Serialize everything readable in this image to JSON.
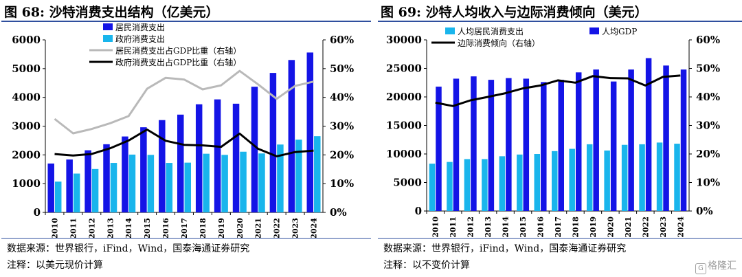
{
  "colors": {
    "bar_primary": "#1414e6",
    "bar_secondary": "#19b5ec",
    "line_light": "#b9b9b9",
    "line_dark": "#000000",
    "rule": "#2f4f9e"
  },
  "panels": [
    {
      "title": "图 68:  沙特消费支出结构（亿美元）",
      "note_source": "数据来源：世界银行，iFind，Wind，国泰海通证券研究",
      "note_comment": "注释：以美元现价计算"
    },
    {
      "title": "图 69:  沙特人均收入与边际消费倾向（美元）",
      "note_source": "数据来源：世界银行，iFind，Wind，国泰海通证券研究",
      "note_comment": "注释：以不变价计算"
    }
  ],
  "watermark": {
    "icon": "gelonghui-logo-icon",
    "text": "格隆汇"
  },
  "chart_data": [
    {
      "type": "bar",
      "title": "沙特消费支出结构（亿美元）",
      "categories": [
        "2010",
        "2011",
        "2012",
        "2013",
        "2014",
        "2015",
        "2016",
        "2017",
        "2018",
        "2019",
        "2020",
        "2021",
        "2022",
        "2023",
        "2024"
      ],
      "ylim": [
        0,
        6000
      ],
      "yticks": [
        0,
        1000,
        2000,
        3000,
        4000,
        5000,
        6000
      ],
      "y2lim": [
        0,
        60
      ],
      "y2ticks": [
        "0%",
        "10%",
        "20%",
        "30%",
        "40%",
        "50%",
        "60%"
      ],
      "legend_position": "top-left",
      "grid": false,
      "series": [
        {
          "name": "居民消费支出",
          "kind": "bar",
          "axis": "left",
          "color": "#1414e6",
          "values": [
            1700,
            1840,
            2160,
            2370,
            2640,
            2960,
            3210,
            3400,
            3760,
            3930,
            3780,
            4370,
            4850,
            5300,
            5560
          ]
        },
        {
          "name": "政府消费支出",
          "kind": "bar",
          "axis": "left",
          "color": "#19b5ec",
          "values": [
            1070,
            1350,
            1510,
            1720,
            2010,
            2000,
            1720,
            1730,
            2040,
            2000,
            2110,
            2050,
            2360,
            2530,
            2650
          ]
        },
        {
          "name": "居民消费支出占GDP比重（右轴）",
          "kind": "line",
          "axis": "right",
          "color": "#b9b9b9",
          "values": [
            32.5,
            27.5,
            29.0,
            31.0,
            33.5,
            43.0,
            46.8,
            46.2,
            42.8,
            44.2,
            49.2,
            44.5,
            39.5,
            44.0,
            45.5
          ]
        },
        {
          "name": "政府消费支出占GDP比重（右轴）",
          "kind": "line",
          "axis": "right",
          "color": "#000000",
          "values": [
            20.3,
            19.8,
            20.3,
            22.3,
            25.0,
            28.8,
            24.9,
            23.5,
            23.3,
            22.8,
            27.4,
            22.1,
            19.5,
            21.0,
            21.5
          ]
        }
      ]
    },
    {
      "type": "bar",
      "title": "沙特人均收入与边际消费倾向（美元）",
      "categories": [
        "2010",
        "2011",
        "2012",
        "2013",
        "2014",
        "2015",
        "2016",
        "2017",
        "2018",
        "2019",
        "2020",
        "2021",
        "2022",
        "2023",
        "2024"
      ],
      "ylim": [
        0,
        30000
      ],
      "yticks": [
        0,
        5000,
        10000,
        15000,
        20000,
        25000,
        30000
      ],
      "y2lim": [
        0,
        60
      ],
      "y2ticks": [
        "0%",
        "10%",
        "20%",
        "30%",
        "40%",
        "50%",
        "60%"
      ],
      "legend_position": "top-left",
      "grid": false,
      "series": [
        {
          "name": "人均居民消费支出",
          "kind": "bar",
          "axis": "left",
          "color": "#19b5ec",
          "values": [
            8300,
            8600,
            9100,
            9100,
            9600,
            9900,
            10000,
            10500,
            10900,
            11700,
            10600,
            11600,
            11700,
            12000,
            11800
          ]
        },
        {
          "name": "人均GDP",
          "kind": "bar",
          "axis": "left",
          "color": "#1414e6",
          "values": [
            21800,
            23200,
            23600,
            23000,
            23300,
            23200,
            22600,
            23000,
            24300,
            24800,
            22700,
            24800,
            26800,
            25500,
            24800
          ]
        },
        {
          "name": "边际消费倾向（右轴）",
          "kind": "line",
          "axis": "right",
          "color": "#000000",
          "values": [
            38.0,
            36.8,
            38.8,
            40.0,
            41.3,
            43.0,
            44.0,
            45.8,
            45.0,
            47.3,
            46.6,
            46.5,
            44.0,
            47.0,
            47.5
          ]
        }
      ]
    }
  ]
}
